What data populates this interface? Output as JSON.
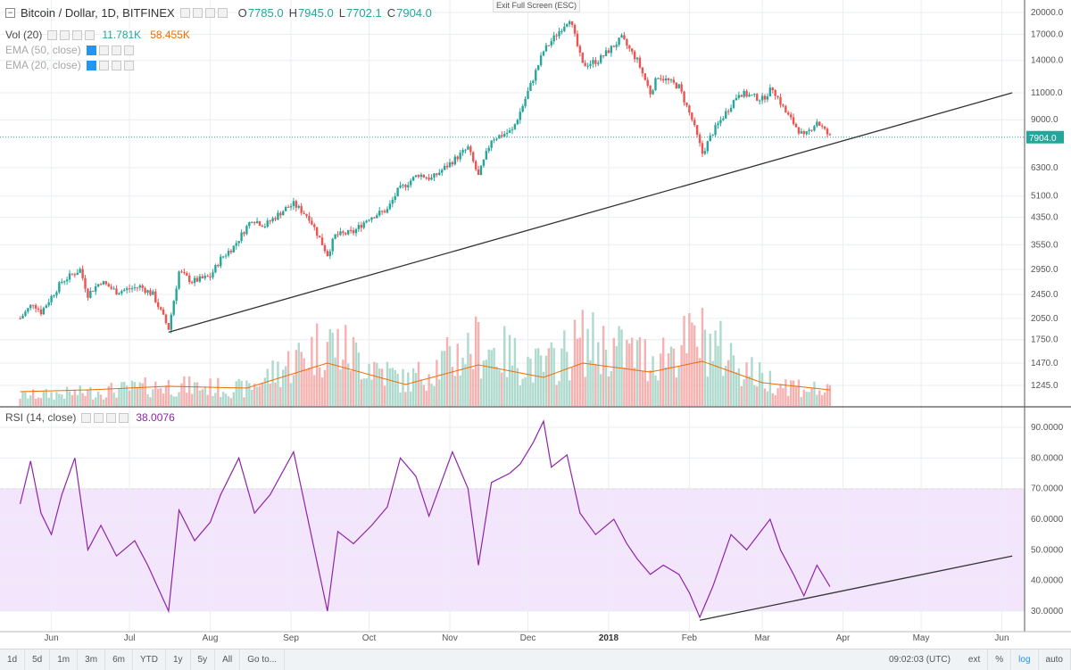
{
  "header": {
    "symbol_title": "Bitcoin / Dollar, 1D, BITFINEX",
    "exit_fullscreen": "Exit Full Screen (ESC)",
    "ohlc": {
      "o_label": "O",
      "o": "7785.0",
      "h_label": "H",
      "h": "7945.0",
      "l_label": "L",
      "l": "7702.1",
      "c_label": "C",
      "c": "7904.0"
    },
    "volume_label": "Vol (20)",
    "volume_value": "11.781K",
    "volume_ma_value": "58.455K",
    "ema50_label": "EMA (50, close)",
    "ema20_label": "EMA (20, close)",
    "rsi_label": "RSI (14, close)",
    "rsi_value": "38.0076"
  },
  "bottom_bar": {
    "ranges": [
      "1d",
      "5d",
      "1m",
      "3m",
      "6m",
      "YTD",
      "1y",
      "5y",
      "All"
    ],
    "goto": "Go to...",
    "time": "09:02:03 (UTC)",
    "options": [
      "ext",
      "%",
      "log",
      "auto"
    ]
  },
  "colors": {
    "up": "#26a69a",
    "down": "#ef5350",
    "rsi": "#8e24aa",
    "vol_ma": "#ef6c00",
    "grid": "#e9eef2",
    "rsi_band": "#f3e5fb"
  },
  "chart_data": [
    {
      "type": "candlestick",
      "title": "Bitcoin / Dollar, 1D, BITFINEX",
      "y_scale": "log",
      "y_ticks": [
        1245,
        1470,
        1750,
        2050,
        2450,
        2950,
        3550,
        4350,
        5100,
        6300,
        7904,
        9000,
        11000,
        14000,
        17000,
        20000
      ],
      "y_tick_labels": [
        "1245.0",
        "1470.0",
        "1750.0",
        "2050.0",
        "2450.0",
        "2950.0",
        "3550.0",
        "4350.0",
        "5100.0",
        "6300.0",
        "7904.0",
        "9000.0",
        "11000.0",
        "14000.0",
        "17000.0",
        "20000.0"
      ],
      "x_ticks": [
        "Jun",
        "Jul",
        "Aug",
        "Sep",
        "Oct",
        "Nov",
        "Dec",
        "2018",
        "Feb",
        "Mar",
        "Apr",
        "May",
        "Jun"
      ],
      "last_price": 7904.0,
      "close_points": [
        {
          "x": "2017-05-20",
          "y": 2050
        },
        {
          "x": "2017-05-25",
          "y": 2300
        },
        {
          "x": "2017-05-28",
          "y": 2150
        },
        {
          "x": "2017-06-05",
          "y": 2700
        },
        {
          "x": "2017-06-12",
          "y": 2950
        },
        {
          "x": "2017-06-15",
          "y": 2450
        },
        {
          "x": "2017-06-20",
          "y": 2700
        },
        {
          "x": "2017-06-26",
          "y": 2500
        },
        {
          "x": "2017-07-05",
          "y": 2600
        },
        {
          "x": "2017-07-10",
          "y": 2450
        },
        {
          "x": "2017-07-16",
          "y": 1900
        },
        {
          "x": "2017-07-20",
          "y": 2900
        },
        {
          "x": "2017-07-25",
          "y": 2700
        },
        {
          "x": "2017-08-01",
          "y": 2800
        },
        {
          "x": "2017-08-05",
          "y": 3200
        },
        {
          "x": "2017-08-10",
          "y": 3500
        },
        {
          "x": "2017-08-17",
          "y": 4300
        },
        {
          "x": "2017-08-22",
          "y": 4100
        },
        {
          "x": "2017-08-30",
          "y": 4650
        },
        {
          "x": "2017-09-02",
          "y": 4800
        },
        {
          "x": "2017-09-08",
          "y": 4350
        },
        {
          "x": "2017-09-15",
          "y": 3300
        },
        {
          "x": "2017-09-18",
          "y": 3800
        },
        {
          "x": "2017-09-25",
          "y": 3900
        },
        {
          "x": "2017-10-01",
          "y": 4350
        },
        {
          "x": "2017-10-08",
          "y": 4600
        },
        {
          "x": "2017-10-12",
          "y": 5300
        },
        {
          "x": "2017-10-20",
          "y": 6000
        },
        {
          "x": "2017-10-25",
          "y": 5800
        },
        {
          "x": "2017-11-01",
          "y": 6500
        },
        {
          "x": "2017-11-08",
          "y": 7300
        },
        {
          "x": "2017-11-12",
          "y": 5900
        },
        {
          "x": "2017-11-17",
          "y": 7800
        },
        {
          "x": "2017-11-25",
          "y": 8300
        },
        {
          "x": "2017-11-29",
          "y": 10000
        },
        {
          "x": "2017-12-07",
          "y": 15000
        },
        {
          "x": "2017-12-12",
          "y": 17000
        },
        {
          "x": "2017-12-17",
          "y": 19200
        },
        {
          "x": "2017-12-22",
          "y": 13500
        },
        {
          "x": "2017-12-28",
          "y": 14000
        },
        {
          "x": "2018-01-06",
          "y": 16500
        },
        {
          "x": "2018-01-12",
          "y": 14000
        },
        {
          "x": "2018-01-17",
          "y": 11000
        },
        {
          "x": "2018-01-20",
          "y": 12500
        },
        {
          "x": "2018-01-28",
          "y": 11500
        },
        {
          "x": "2018-02-02",
          "y": 9000
        },
        {
          "x": "2018-02-06",
          "y": 7000
        },
        {
          "x": "2018-02-10",
          "y": 8200
        },
        {
          "x": "2018-02-20",
          "y": 11000
        },
        {
          "x": "2018-03-01",
          "y": 10500
        },
        {
          "x": "2018-03-05",
          "y": 11400
        },
        {
          "x": "2018-03-10",
          "y": 9500
        },
        {
          "x": "2018-03-17",
          "y": 7900
        },
        {
          "x": "2018-03-22",
          "y": 8900
        },
        {
          "x": "2018-03-27",
          "y": 7904
        }
      ],
      "trendline": [
        {
          "x": "2017-07-16",
          "y": 1850
        },
        {
          "x": "2018-06-05",
          "y": 11000
        }
      ]
    },
    {
      "type": "line",
      "title": "RSI (14, close)",
      "y_ticks": [
        30,
        40,
        50,
        60,
        70,
        80,
        90
      ],
      "y_tick_labels": [
        "30.0000",
        "40.0000",
        "50.0000",
        "60.0000",
        "70.0000",
        "80.0000",
        "90.0000"
      ],
      "band": [
        30,
        70
      ],
      "series": [
        {
          "name": "RSI (14, close)",
          "points": [
            {
              "x": "2017-05-20",
              "y": 65
            },
            {
              "x": "2017-05-24",
              "y": 79
            },
            {
              "x": "2017-05-28",
              "y": 62
            },
            {
              "x": "2017-06-01",
              "y": 55
            },
            {
              "x": "2017-06-05",
              "y": 68
            },
            {
              "x": "2017-06-10",
              "y": 80
            },
            {
              "x": "2017-06-15",
              "y": 50
            },
            {
              "x": "2017-06-20",
              "y": 58
            },
            {
              "x": "2017-06-26",
              "y": 48
            },
            {
              "x": "2017-07-03",
              "y": 53
            },
            {
              "x": "2017-07-08",
              "y": 45
            },
            {
              "x": "2017-07-16",
              "y": 30
            },
            {
              "x": "2017-07-20",
              "y": 63
            },
            {
              "x": "2017-07-26",
              "y": 53
            },
            {
              "x": "2017-08-01",
              "y": 59
            },
            {
              "x": "2017-08-05",
              "y": 68
            },
            {
              "x": "2017-08-12",
              "y": 80
            },
            {
              "x": "2017-08-18",
              "y": 62
            },
            {
              "x": "2017-08-24",
              "y": 68
            },
            {
              "x": "2017-09-02",
              "y": 82
            },
            {
              "x": "2017-09-08",
              "y": 58
            },
            {
              "x": "2017-09-15",
              "y": 30
            },
            {
              "x": "2017-09-19",
              "y": 56
            },
            {
              "x": "2017-09-25",
              "y": 52
            },
            {
              "x": "2017-10-02",
              "y": 58
            },
            {
              "x": "2017-10-08",
              "y": 64
            },
            {
              "x": "2017-10-13",
              "y": 80
            },
            {
              "x": "2017-10-19",
              "y": 74
            },
            {
              "x": "2017-10-24",
              "y": 61
            },
            {
              "x": "2017-11-02",
              "y": 82
            },
            {
              "x": "2017-11-08",
              "y": 70
            },
            {
              "x": "2017-11-12",
              "y": 45
            },
            {
              "x": "2017-11-17",
              "y": 72
            },
            {
              "x": "2017-11-24",
              "y": 75
            },
            {
              "x": "2017-11-28",
              "y": 78
            },
            {
              "x": "2017-12-03",
              "y": 85
            },
            {
              "x": "2017-12-07",
              "y": 92
            },
            {
              "x": "2017-12-10",
              "y": 77
            },
            {
              "x": "2017-12-16",
              "y": 81
            },
            {
              "x": "2017-12-21",
              "y": 62
            },
            {
              "x": "2017-12-27",
              "y": 55
            },
            {
              "x": "2018-01-03",
              "y": 60
            },
            {
              "x": "2018-01-08",
              "y": 52
            },
            {
              "x": "2018-01-12",
              "y": 47
            },
            {
              "x": "2018-01-17",
              "y": 42
            },
            {
              "x": "2018-01-22",
              "y": 45
            },
            {
              "x": "2018-01-28",
              "y": 42
            },
            {
              "x": "2018-02-01",
              "y": 36
            },
            {
              "x": "2018-02-05",
              "y": 28
            },
            {
              "x": "2018-02-10",
              "y": 38
            },
            {
              "x": "2018-02-17",
              "y": 55
            },
            {
              "x": "2018-02-23",
              "y": 50
            },
            {
              "x": "2018-03-04",
              "y": 60
            },
            {
              "x": "2018-03-08",
              "y": 50
            },
            {
              "x": "2018-03-13",
              "y": 42
            },
            {
              "x": "2018-03-17",
              "y": 35
            },
            {
              "x": "2018-03-22",
              "y": 45
            },
            {
              "x": "2018-03-27",
              "y": 38
            }
          ]
        }
      ],
      "trendline": [
        {
          "x": "2018-02-05",
          "y": 27
        },
        {
          "x": "2018-06-05",
          "y": 48
        }
      ]
    },
    {
      "type": "bar",
      "title": "Vol (20)",
      "series": [
        {
          "name": "Vol (20)",
          "points": [
            {
              "x": "2017-05-20",
              "y": 0.15
            },
            {
              "x": "2017-06-15",
              "y": 0.2
            },
            {
              "x": "2017-07-16",
              "y": 0.3
            },
            {
              "x": "2017-08-15",
              "y": 0.25
            },
            {
              "x": "2017-09-15",
              "y": 0.95
            },
            {
              "x": "2017-10-15",
              "y": 0.35
            },
            {
              "x": "2017-11-12",
              "y": 0.9
            },
            {
              "x": "2017-12-07",
              "y": 0.55
            },
            {
              "x": "2017-12-22",
              "y": 0.95
            },
            {
              "x": "2018-01-17",
              "y": 0.7
            },
            {
              "x": "2018-02-06",
              "y": 1.0
            },
            {
              "x": "2018-03-01",
              "y": 0.4
            },
            {
              "x": "2018-03-27",
              "y": 0.2
            }
          ]
        }
      ]
    }
  ]
}
